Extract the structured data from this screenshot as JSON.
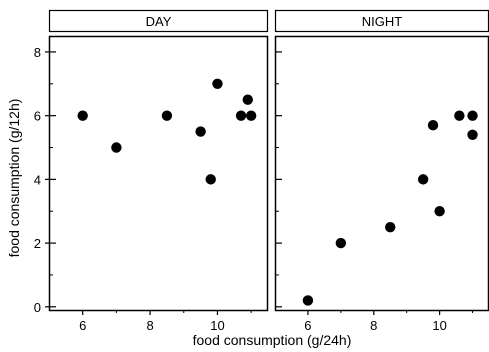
{
  "chart_data": {
    "type": "scatter",
    "xlabel": "food consumption (g/24h)",
    "ylabel": "food consumption (g/12h)",
    "panels": [
      {
        "name": "DAY",
        "xlim": [
          5,
          11.5
        ],
        "ylim": [
          -0.1,
          8.5
        ],
        "x_ticks": [
          6,
          8,
          10
        ],
        "y_ticks": [
          0,
          2,
          4,
          6,
          8
        ],
        "points": [
          {
            "x": 6.0,
            "y": 6.0
          },
          {
            "x": 7.0,
            "y": 5.0
          },
          {
            "x": 8.5,
            "y": 6.0
          },
          {
            "x": 9.5,
            "y": 5.5
          },
          {
            "x": 9.8,
            "y": 4.0
          },
          {
            "x": 10.0,
            "y": 7.0
          },
          {
            "x": 10.7,
            "y": 6.0
          },
          {
            "x": 10.9,
            "y": 6.5
          },
          {
            "x": 11.0,
            "y": 6.0
          }
        ]
      },
      {
        "name": "NIGHT",
        "xlim": [
          5,
          11.5
        ],
        "ylim": [
          -0.1,
          8.5
        ],
        "x_ticks": [
          6,
          8,
          10
        ],
        "y_ticks": [
          0,
          2,
          4,
          6,
          8
        ],
        "points": [
          {
            "x": 6.0,
            "y": 0.2
          },
          {
            "x": 7.0,
            "y": 2.0
          },
          {
            "x": 8.5,
            "y": 2.5
          },
          {
            "x": 9.5,
            "y": 4.0
          },
          {
            "x": 9.8,
            "y": 5.7
          },
          {
            "x": 10.0,
            "y": 3.0
          },
          {
            "x": 10.6,
            "y": 6.0
          },
          {
            "x": 11.0,
            "y": 6.0
          },
          {
            "x": 11.0,
            "y": 5.4
          }
        ]
      }
    ]
  }
}
